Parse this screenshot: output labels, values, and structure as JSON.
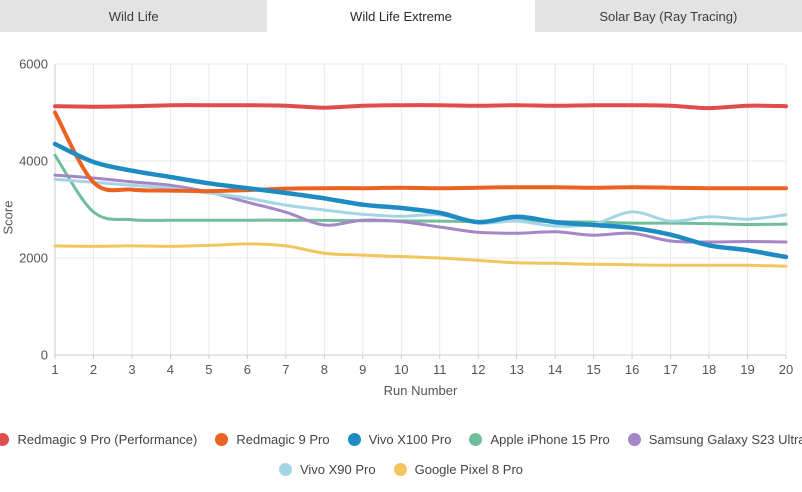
{
  "tabs": {
    "items": [
      {
        "label": "Wild Life",
        "active": false
      },
      {
        "label": "Wild Life Extreme",
        "active": true
      },
      {
        "label": "Solar Bay (Ray Tracing)",
        "active": false
      }
    ]
  },
  "chart_data": {
    "type": "line",
    "title": "",
    "xlabel": "Run Number",
    "ylabel": "Score",
    "x": [
      1,
      2,
      3,
      4,
      5,
      6,
      7,
      8,
      9,
      10,
      11,
      12,
      13,
      14,
      15,
      16,
      17,
      18,
      19,
      20
    ],
    "xlim": [
      1,
      20
    ],
    "ylim": [
      0,
      6000
    ],
    "yticks": [
      0,
      2000,
      4000,
      6000
    ],
    "grid": true,
    "legend_position": "bottom",
    "legend_rows": [
      [
        0,
        1,
        2,
        3,
        4
      ],
      [
        5,
        6
      ]
    ],
    "series": [
      {
        "name": "Redmagic 9 Pro (Performance)",
        "color": "#e04d4b",
        "width": 4,
        "values": [
          5130,
          5120,
          5130,
          5150,
          5150,
          5150,
          5140,
          5100,
          5140,
          5150,
          5150,
          5140,
          5150,
          5140,
          5150,
          5150,
          5140,
          5090,
          5140,
          5130
        ]
      },
      {
        "name": "Redmagic 9 Pro",
        "color": "#eb6223",
        "width": 4,
        "values": [
          5000,
          3560,
          3410,
          3390,
          3380,
          3400,
          3430,
          3440,
          3440,
          3450,
          3440,
          3450,
          3460,
          3460,
          3450,
          3460,
          3450,
          3440,
          3440,
          3440
        ]
      },
      {
        "name": "Vivo X100 Pro",
        "color": "#1e8bc3",
        "width": 4.5,
        "values": [
          4350,
          3980,
          3800,
          3670,
          3540,
          3440,
          3340,
          3230,
          3100,
          3030,
          2930,
          2740,
          2850,
          2740,
          2680,
          2620,
          2480,
          2260,
          2160,
          2020
        ]
      },
      {
        "name": "Apple iPhone 15 Pro",
        "color": "#72bd9b",
        "width": 3,
        "values": [
          4120,
          2950,
          2790,
          2780,
          2780,
          2780,
          2780,
          2775,
          2770,
          2765,
          2760,
          2750,
          2770,
          2750,
          2740,
          2720,
          2720,
          2710,
          2690,
          2700
        ]
      },
      {
        "name": "Samsung Galaxy S23 Ultra",
        "color": "#a586c6",
        "width": 3,
        "values": [
          3710,
          3650,
          3570,
          3500,
          3360,
          3150,
          2945,
          2680,
          2780,
          2750,
          2640,
          2530,
          2510,
          2540,
          2470,
          2510,
          2350,
          2330,
          2340,
          2330
        ]
      },
      {
        "name": "Vivo X90 Pro",
        "color": "#a5d5e5",
        "width": 3,
        "values": [
          3620,
          3560,
          3500,
          3440,
          3340,
          3235,
          3090,
          2990,
          2900,
          2860,
          2890,
          2720,
          2760,
          2660,
          2700,
          2950,
          2760,
          2850,
          2800,
          2890
        ]
      },
      {
        "name": "Google Pixel 8 Pro",
        "color": "#f1c65e",
        "width": 3,
        "values": [
          2250,
          2240,
          2250,
          2240,
          2260,
          2290,
          2250,
          2100,
          2060,
          2030,
          2000,
          1950,
          1900,
          1890,
          1870,
          1860,
          1850,
          1850,
          1850,
          1830
        ]
      }
    ]
  },
  "colors": {
    "tab_inactive_bg": "#e3e3e3",
    "tab_active_bg": "#ffffff",
    "grid": "#e8e8e8",
    "axis": "#cccccc",
    "tick_text": "#555555",
    "legend_text": "#444444"
  }
}
